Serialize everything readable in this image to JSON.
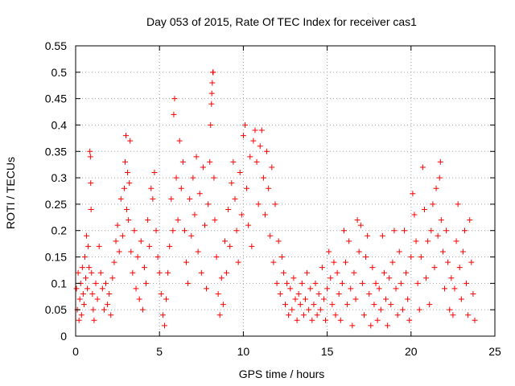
{
  "chart_data": {
    "type": "scatter",
    "title": "Day 053 of 2015, Rate Of TEC Index for receiver cas1",
    "xlabel": "GPS time / hours",
    "ylabel": "ROTI / TECUs",
    "xlim": [
      0,
      25
    ],
    "ylim": [
      0,
      0.55
    ],
    "xticks": [
      0,
      5,
      10,
      15,
      20,
      25
    ],
    "yticks": [
      0,
      0.05,
      0.1,
      0.15,
      0.2,
      0.25,
      0.3,
      0.35,
      0.4,
      0.45,
      0.5,
      0.55
    ],
    "xtick_labels": [
      "0",
      "5",
      "10",
      "15",
      "20",
      "25"
    ],
    "ytick_labels": [
      "0",
      "0.05",
      "0.1",
      "0.15",
      "0.2",
      "0.25",
      "0.3",
      "0.35",
      "0.4",
      "0.45",
      "0.5",
      "0.55"
    ],
    "grid": true,
    "marker": "plus",
    "color": "#ff0000",
    "series": [
      {
        "points": [
          [
            0.05,
            0.09
          ],
          [
            0.1,
            0.05
          ],
          [
            0.15,
            0.12
          ],
          [
            0.2,
            0.03
          ],
          [
            0.25,
            0.07
          ],
          [
            0.3,
            0.1
          ],
          [
            0.35,
            0.04
          ],
          [
            0.4,
            0.13
          ],
          [
            0.45,
            0.08
          ],
          [
            0.5,
            0.06
          ],
          [
            0.55,
            0.15
          ],
          [
            0.6,
            0.11
          ],
          [
            0.65,
            0.19
          ],
          [
            0.7,
            0.09
          ],
          [
            0.75,
            0.17
          ],
          [
            0.8,
            0.13
          ],
          [
            0.85,
            0.35
          ],
          [
            0.88,
            0.34
          ],
          [
            0.9,
            0.29
          ],
          [
            0.92,
            0.24
          ],
          [
            0.95,
            0.12
          ],
          [
            1.0,
            0.08
          ],
          [
            1.05,
            0.05
          ],
          [
            1.1,
            0.03
          ],
          [
            1.2,
            0.1
          ],
          [
            1.3,
            0.07
          ],
          [
            1.4,
            0.17
          ],
          [
            1.5,
            0.12
          ],
          [
            1.6,
            0.09
          ],
          [
            1.7,
            0.05
          ],
          [
            1.8,
            0.1
          ],
          [
            1.9,
            0.06
          ],
          [
            2.0,
            0.08
          ],
          [
            2.1,
            0.04
          ],
          [
            2.2,
            0.11
          ],
          [
            2.3,
            0.14
          ],
          [
            2.4,
            0.18
          ],
          [
            2.5,
            0.21
          ],
          [
            2.6,
            0.16
          ],
          [
            2.7,
            0.26
          ],
          [
            2.8,
            0.19
          ],
          [
            2.9,
            0.28
          ],
          [
            2.95,
            0.33
          ],
          [
            3.0,
            0.38
          ],
          [
            3.05,
            0.24
          ],
          [
            3.1,
            0.31
          ],
          [
            3.15,
            0.22
          ],
          [
            3.2,
            0.29
          ],
          [
            3.25,
            0.37
          ],
          [
            3.3,
            0.16
          ],
          [
            3.4,
            0.12
          ],
          [
            3.5,
            0.2
          ],
          [
            3.6,
            0.09
          ],
          [
            3.7,
            0.15
          ],
          [
            3.8,
            0.07
          ],
          [
            3.9,
            0.18
          ],
          [
            4.0,
            0.05
          ],
          [
            4.1,
            0.13
          ],
          [
            4.2,
            0.1
          ],
          [
            4.3,
            0.22
          ],
          [
            4.4,
            0.17
          ],
          [
            4.5,
            0.28
          ],
          [
            4.6,
            0.26
          ],
          [
            4.7,
            0.31
          ],
          [
            4.8,
            0.2
          ],
          [
            4.9,
            0.15
          ],
          [
            5.0,
            0.12
          ],
          [
            5.1,
            0.08
          ],
          [
            5.2,
            0.04
          ],
          [
            5.3,
            0.02
          ],
          [
            5.4,
            0.07
          ],
          [
            5.5,
            0.12
          ],
          [
            5.6,
            0.17
          ],
          [
            5.7,
            0.26
          ],
          [
            5.8,
            0.2
          ],
          [
            5.85,
            0.42
          ],
          [
            5.9,
            0.45
          ],
          [
            6.0,
            0.3
          ],
          [
            6.1,
            0.22
          ],
          [
            6.2,
            0.37
          ],
          [
            6.3,
            0.28
          ],
          [
            6.4,
            0.33
          ],
          [
            6.5,
            0.2
          ],
          [
            6.6,
            0.14
          ],
          [
            6.7,
            0.1
          ],
          [
            6.8,
            0.26
          ],
          [
            6.9,
            0.19
          ],
          [
            7.0,
            0.3
          ],
          [
            7.1,
            0.23
          ],
          [
            7.2,
            0.34
          ],
          [
            7.3,
            0.16
          ],
          [
            7.4,
            0.27
          ],
          [
            7.5,
            0.12
          ],
          [
            7.6,
            0.32
          ],
          [
            7.7,
            0.21
          ],
          [
            7.8,
            0.09
          ],
          [
            7.9,
            0.25
          ],
          [
            8.0,
            0.33
          ],
          [
            8.05,
            0.4
          ],
          [
            8.1,
            0.44
          ],
          [
            8.12,
            0.46
          ],
          [
            8.15,
            0.48
          ],
          [
            8.18,
            0.5
          ],
          [
            8.2,
            0.5
          ],
          [
            8.25,
            0.3
          ],
          [
            8.3,
            0.22
          ],
          [
            8.4,
            0.15
          ],
          [
            8.5,
            0.08
          ],
          [
            8.6,
            0.04
          ],
          [
            8.7,
            0.11
          ],
          [
            8.8,
            0.06
          ],
          [
            8.9,
            0.18
          ],
          [
            9.0,
            0.12
          ],
          [
            9.1,
            0.24
          ],
          [
            9.2,
            0.17
          ],
          [
            9.3,
            0.29
          ],
          [
            9.4,
            0.33
          ],
          [
            9.5,
            0.26
          ],
          [
            9.6,
            0.2
          ],
          [
            9.7,
            0.14
          ],
          [
            9.8,
            0.31
          ],
          [
            9.9,
            0.23
          ],
          [
            10.0,
            0.38
          ],
          [
            10.1,
            0.4
          ],
          [
            10.2,
            0.28
          ],
          [
            10.3,
            0.21
          ],
          [
            10.4,
            0.34
          ],
          [
            10.5,
            0.17
          ],
          [
            10.6,
            0.37
          ],
          [
            10.7,
            0.39
          ],
          [
            10.8,
            0.33
          ],
          [
            10.9,
            0.25
          ],
          [
            11.0,
            0.36
          ],
          [
            11.1,
            0.39
          ],
          [
            11.2,
            0.3
          ],
          [
            11.3,
            0.23
          ],
          [
            11.4,
            0.35
          ],
          [
            11.5,
            0.28
          ],
          [
            11.6,
            0.19
          ],
          [
            11.7,
            0.32
          ],
          [
            11.8,
            0.14
          ],
          [
            11.9,
            0.25
          ],
          [
            12.0,
            0.1
          ],
          [
            12.1,
            0.18
          ],
          [
            12.2,
            0.08
          ],
          [
            12.3,
            0.15
          ],
          [
            12.4,
            0.12
          ],
          [
            12.5,
            0.06
          ],
          [
            12.6,
            0.1
          ],
          [
            12.7,
            0.04
          ],
          [
            12.8,
            0.09
          ],
          [
            12.9,
            0.05
          ],
          [
            13.0,
            0.11
          ],
          [
            13.1,
            0.07
          ],
          [
            13.2,
            0.03
          ],
          [
            13.3,
            0.08
          ],
          [
            13.4,
            0.06
          ],
          [
            13.5,
            0.1
          ],
          [
            13.6,
            0.04
          ],
          [
            13.7,
            0.07
          ],
          [
            13.8,
            0.12
          ],
          [
            13.9,
            0.05
          ],
          [
            14.0,
            0.09
          ],
          [
            14.1,
            0.03
          ],
          [
            14.2,
            0.06
          ],
          [
            14.3,
            0.1
          ],
          [
            14.4,
            0.04
          ],
          [
            14.5,
            0.08
          ],
          [
            14.6,
            0.05
          ],
          [
            14.7,
            0.13
          ],
          [
            14.8,
            0.07
          ],
          [
            14.9,
            0.03
          ],
          [
            15.0,
            0.09
          ],
          [
            15.1,
            0.16
          ],
          [
            15.2,
            0.11
          ],
          [
            15.3,
            0.06
          ],
          [
            15.4,
            0.14
          ],
          [
            15.5,
            0.04
          ],
          [
            15.6,
            0.12
          ],
          [
            15.7,
            0.08
          ],
          [
            15.8,
            0.03
          ],
          [
            15.9,
            0.1
          ],
          [
            16.0,
            0.2
          ],
          [
            16.1,
            0.14
          ],
          [
            16.2,
            0.06
          ],
          [
            16.3,
            0.18
          ],
          [
            16.4,
            0.09
          ],
          [
            16.5,
            0.02
          ],
          [
            16.6,
            0.12
          ],
          [
            16.7,
            0.07
          ],
          [
            16.8,
            0.22
          ],
          [
            16.9,
            0.16
          ],
          [
            17.0,
            0.21
          ],
          [
            17.1,
            0.1
          ],
          [
            17.2,
            0.04
          ],
          [
            17.3,
            0.15
          ],
          [
            17.4,
            0.19
          ],
          [
            17.5,
            0.08
          ],
          [
            17.6,
            0.02
          ],
          [
            17.7,
            0.13
          ],
          [
            17.8,
            0.06
          ],
          [
            17.9,
            0.1
          ],
          [
            18.0,
            0.03
          ],
          [
            18.1,
            0.09
          ],
          [
            18.2,
            0.05
          ],
          [
            18.3,
            0.19
          ],
          [
            18.4,
            0.12
          ],
          [
            18.5,
            0.07
          ],
          [
            18.6,
            0.02
          ],
          [
            18.7,
            0.11
          ],
          [
            18.8,
            0.06
          ],
          [
            18.9,
            0.14
          ],
          [
            19.0,
            0.2
          ],
          [
            19.1,
            0.09
          ],
          [
            19.2,
            0.04
          ],
          [
            19.3,
            0.16
          ],
          [
            19.4,
            0.1
          ],
          [
            19.5,
            0.05
          ],
          [
            19.6,
            0.2
          ],
          [
            19.7,
            0.12
          ],
          [
            19.8,
            0.07
          ],
          [
            19.9,
            0.03
          ],
          [
            20.0,
            0.15
          ],
          [
            20.1,
            0.27
          ],
          [
            20.2,
            0.23
          ],
          [
            20.3,
            0.18
          ],
          [
            20.4,
            0.1
          ],
          [
            20.5,
            0.05
          ],
          [
            20.6,
            0.15
          ],
          [
            20.7,
            0.32
          ],
          [
            20.8,
            0.24
          ],
          [
            20.9,
            0.11
          ],
          [
            21.0,
            0.18
          ],
          [
            21.1,
            0.06
          ],
          [
            21.2,
            0.2
          ],
          [
            21.3,
            0.25
          ],
          [
            21.4,
            0.13
          ],
          [
            21.5,
            0.28
          ],
          [
            21.6,
            0.19
          ],
          [
            21.7,
            0.3
          ],
          [
            21.75,
            0.33
          ],
          [
            21.8,
            0.22
          ],
          [
            21.9,
            0.16
          ],
          [
            22.0,
            0.09
          ],
          [
            22.1,
            0.2
          ],
          [
            22.2,
            0.14
          ],
          [
            22.3,
            0.05
          ],
          [
            22.4,
            0.11
          ],
          [
            22.5,
            0.04
          ],
          [
            22.6,
            0.09
          ],
          [
            22.7,
            0.18
          ],
          [
            22.8,
            0.25
          ],
          [
            22.9,
            0.13
          ],
          [
            23.0,
            0.07
          ],
          [
            23.1,
            0.16
          ],
          [
            23.2,
            0.2
          ],
          [
            23.3,
            0.1
          ],
          [
            23.4,
            0.04
          ],
          [
            23.5,
            0.22
          ],
          [
            23.6,
            0.14
          ],
          [
            23.7,
            0.08
          ],
          [
            23.8,
            0.03
          ]
        ]
      }
    ]
  }
}
